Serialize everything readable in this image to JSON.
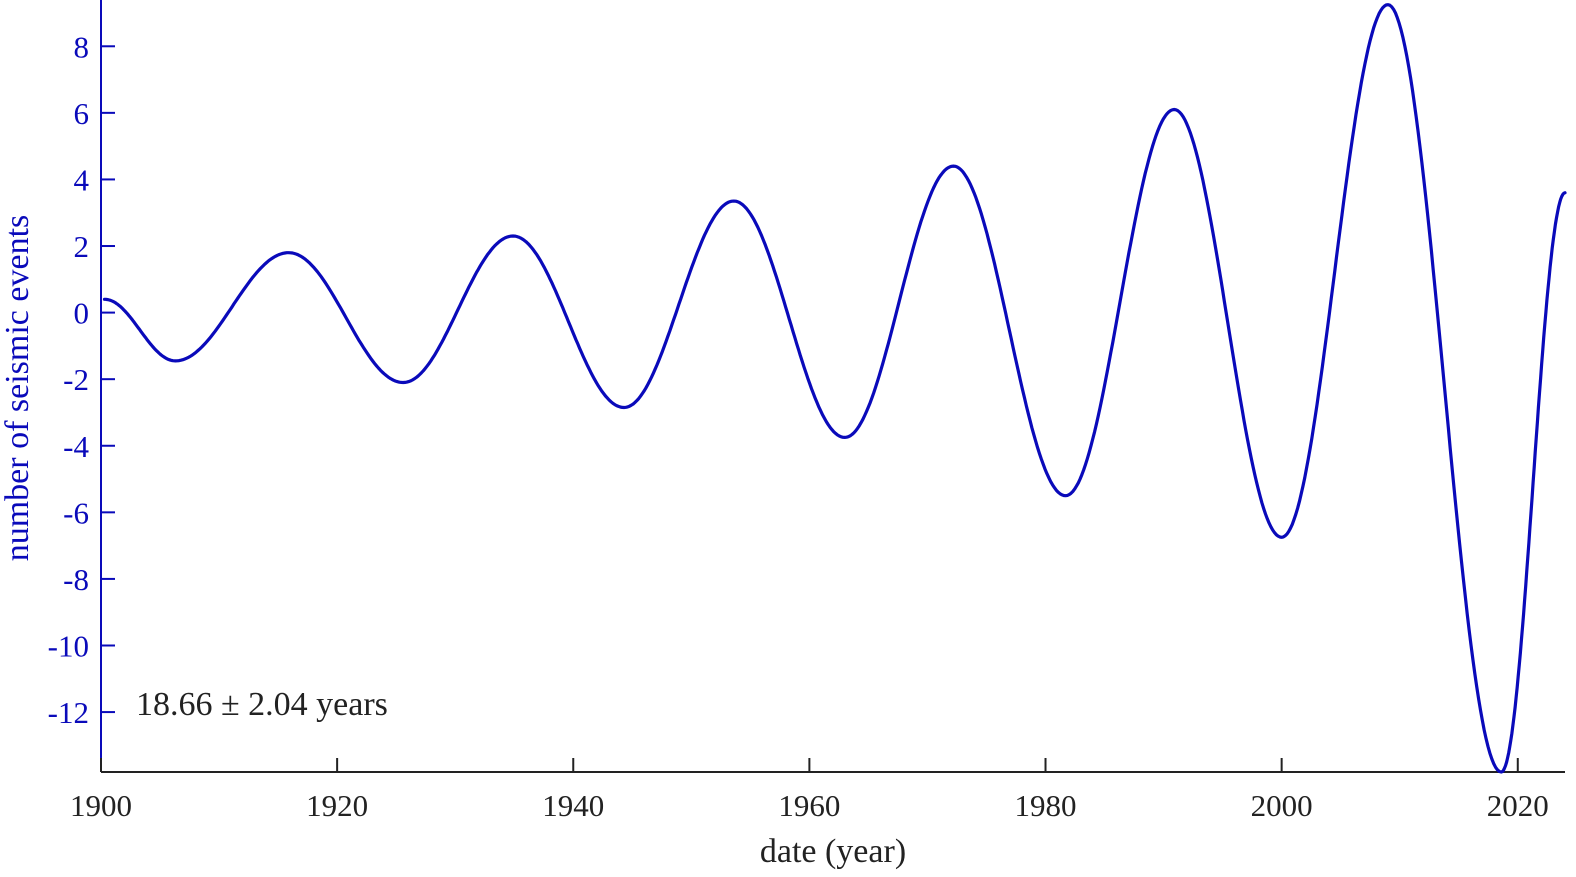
{
  "chart_data": {
    "type": "line",
    "title": "",
    "xlabel": "date (year)",
    "ylabel": "number of seismic events",
    "xlim": [
      1900,
      2024
    ],
    "ylim": [
      -13.8,
      9.3
    ],
    "x_ticks": [
      1900,
      1920,
      1940,
      1960,
      1980,
      2000,
      2020
    ],
    "y_ticks": [
      8,
      6,
      4,
      2,
      0,
      -2,
      -4,
      -6,
      -8,
      -10,
      -12
    ],
    "grid": false,
    "annotation": "18.66 ± 2.04 years",
    "colors": {
      "line": "#0a0aba",
      "y_axis": "#0a0aba",
      "x_axis": "#222222",
      "text": "#222222"
    },
    "series": [
      {
        "x": [
          1900.3,
          1906.3,
          1915.9,
          1925.6,
          1934.9,
          1944.3,
          1953.6,
          1963.0,
          1972.2,
          1981.7,
          1990.9,
          2000.0,
          2009.0,
          2018.6,
          2024.0
        ],
        "y": [
          0.4,
          -1.45,
          1.8,
          -2.1,
          2.3,
          -2.85,
          3.35,
          -3.75,
          4.4,
          -5.5,
          6.1,
          -6.75,
          9.25,
          -13.8,
          3.6
        ]
      }
    ]
  }
}
